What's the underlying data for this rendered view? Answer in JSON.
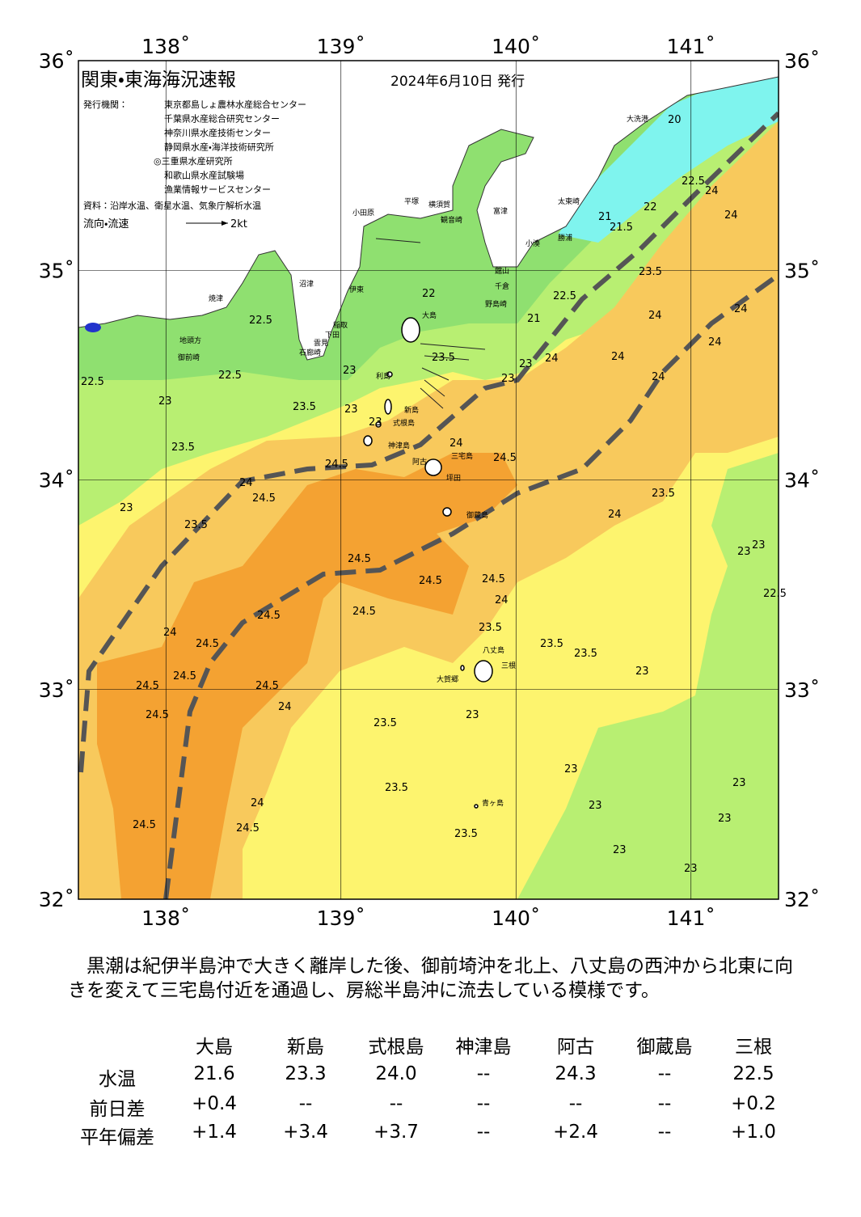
{
  "map": {
    "title": "関東・東海海況速報",
    "issued": "2024年6月10日 発行",
    "publisher_label": "発行機関：",
    "publishers": [
      "東京都島しょ農林水産総合センター",
      "千葉県水産総合研究センター",
      "神奈川県水産技術センター",
      "静岡県水産・海洋技術研究所",
      "◎三重県水産研究所",
      "和歌山県水産試験場",
      "漁業情報サービスセンター"
    ],
    "source": "資料：沿岸水温、衛星水温、気象庁解析水温",
    "legend_label": "流向・流速",
    "legend_scale": "2kt",
    "lon_ticks": [
      {
        "value": 138,
        "label": "138˚"
      },
      {
        "value": 139,
        "label": "139˚"
      },
      {
        "value": 140,
        "label": "140˚"
      },
      {
        "value": 141,
        "label": "141˚"
      }
    ],
    "lat_ticks": [
      {
        "value": 36,
        "label": "36˚"
      },
      {
        "value": 35,
        "label": "35˚"
      },
      {
        "value": 34,
        "label": "34˚"
      },
      {
        "value": 33,
        "label": "33˚"
      },
      {
        "value": 32,
        "label": "32˚"
      }
    ],
    "places": [
      "大洗港",
      "太東崎",
      "勝浦",
      "小湊",
      "館山",
      "千倉",
      "野島崎",
      "富津",
      "横須賀",
      "観音崎",
      "平塚",
      "小田原",
      "伊東",
      "稲取",
      "下田",
      "雲見",
      "石廊崎",
      "沼津",
      "焼津",
      "地頭方",
      "御前崎",
      "大島",
      "利島",
      "新島",
      "式根島",
      "神津島",
      "阿古",
      "三宅島",
      "坪田",
      "御蔵島",
      "八丈島",
      "三根",
      "大賀郷",
      "青ヶ島"
    ],
    "contour_labels": [
      "22.5",
      "22.5",
      "22.5",
      "23",
      "23.5",
      "23.5",
      "23",
      "23.5",
      "24.5",
      "24.5",
      "24",
      "24.5",
      "24.5",
      "24.5",
      "24",
      "23.5",
      "24.5",
      "24.5",
      "24.5",
      "24.5",
      "24.5",
      "24.5",
      "24.5",
      "24",
      "23.5",
      "23.5",
      "23.5",
      "24.5",
      "24.5",
      "24",
      "24",
      "23.5",
      "23.5",
      "23",
      "23",
      "23",
      "23",
      "23",
      "23",
      "23",
      "23",
      "23",
      "23",
      "22.5",
      "23.5",
      "24",
      "24",
      "24",
      "24",
      "24",
      "24",
      "24",
      "23.5",
      "22.5",
      "22",
      "21.5",
      "21",
      "22.5",
      "24",
      "24",
      "20",
      "21",
      "22",
      "23",
      "24",
      "24.5",
      "23",
      "23",
      "23",
      "23",
      "23.5"
    ]
  },
  "summary": "黒潮は紀伊半島沖で大きく離岸した後、御前埼沖を北上、八丈島の西沖から北東に向きを変えて三宅島付近を通過し、房総半島沖に流去している模様です。",
  "table": {
    "columns": [
      "大島",
      "新島",
      "式根島",
      "神津島",
      "阿古",
      "御蔵島",
      "三根"
    ],
    "rows": [
      {
        "label": "水温",
        "values": [
          "21.6",
          "23.3",
          "24.0",
          "--",
          "24.3",
          "--",
          "22.5"
        ]
      },
      {
        "label": "前日差",
        "values": [
          "+0.4",
          "--",
          "--",
          "--",
          "--",
          "--",
          "+0.2"
        ]
      },
      {
        "label": "平年偏差",
        "values": [
          "+1.4",
          "+3.4",
          "+3.7",
          "--",
          "+2.4",
          "--",
          "+1.0"
        ]
      }
    ]
  }
}
